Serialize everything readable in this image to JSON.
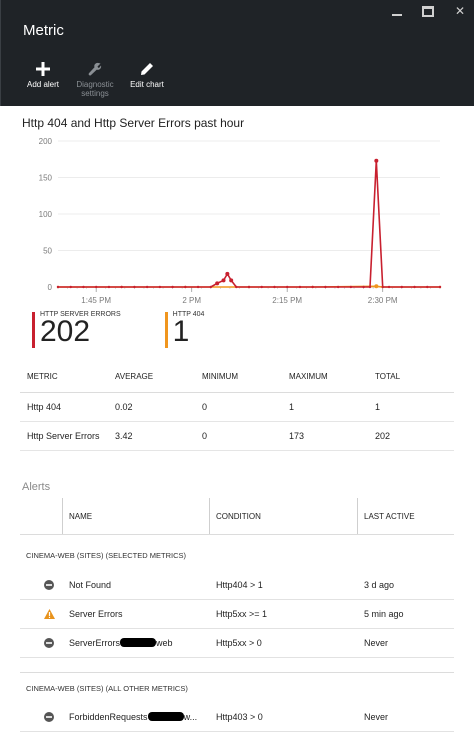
{
  "window": {
    "title": "Metric",
    "min_icon": "minimize-icon",
    "max_icon": "maximize-icon",
    "close_icon": "close-icon"
  },
  "toolbar": [
    {
      "label": "Add alert",
      "icon": "plus-icon",
      "enabled": true
    },
    {
      "label": "Diagnostic settings",
      "icon": "wrench-icon",
      "enabled": false
    },
    {
      "label": "Edit chart",
      "icon": "pencil-icon",
      "enabled": true
    }
  ],
  "chart_data": {
    "type": "line",
    "title": "Http 404 and Http Server Errors past hour",
    "ylim": [
      0,
      200
    ],
    "yticks": [
      0,
      50,
      100,
      150,
      200
    ],
    "x_tick_labels": [
      "1:45 PM",
      "2 PM",
      "2:15 PM",
      "2:30 PM"
    ],
    "x_tick_minutes": [
      6,
      21,
      36,
      51
    ],
    "xlim_minutes": [
      0,
      60
    ],
    "grid": true,
    "series": [
      {
        "name": "HTTP SERVER ERRORS",
        "color": "#c8202f",
        "points": [
          [
            0,
            0
          ],
          [
            2,
            0
          ],
          [
            4,
            0
          ],
          [
            6,
            0
          ],
          [
            8,
            0
          ],
          [
            10,
            0
          ],
          [
            12,
            0
          ],
          [
            14,
            0
          ],
          [
            16,
            0
          ],
          [
            18,
            0
          ],
          [
            20,
            0
          ],
          [
            22,
            0
          ],
          [
            24,
            0
          ],
          [
            25,
            5
          ],
          [
            26,
            9
          ],
          [
            26.6,
            18
          ],
          [
            27.2,
            9
          ],
          [
            28,
            0
          ],
          [
            30,
            0
          ],
          [
            32,
            0
          ],
          [
            34,
            0
          ],
          [
            36,
            0
          ],
          [
            38,
            0
          ],
          [
            40,
            0
          ],
          [
            42,
            0
          ],
          [
            44,
            0
          ],
          [
            46,
            0
          ],
          [
            48,
            0
          ],
          [
            49,
            0
          ],
          [
            50,
            173
          ],
          [
            51,
            0
          ],
          [
            52,
            0
          ],
          [
            54,
            0
          ],
          [
            56,
            0
          ],
          [
            58,
            0
          ],
          [
            60,
            0
          ]
        ]
      },
      {
        "name": "HTTP 404",
        "color": "#f0961e",
        "points": [
          [
            0,
            0
          ],
          [
            10,
            0
          ],
          [
            20,
            0
          ],
          [
            30,
            0
          ],
          [
            40,
            0
          ],
          [
            50,
            1
          ],
          [
            51,
            0
          ],
          [
            60,
            0
          ]
        ]
      }
    ]
  },
  "legend": [
    {
      "name": "HTTP SERVER ERRORS",
      "value": "202",
      "color": "#c8202f"
    },
    {
      "name": "HTTP 404",
      "value": "1",
      "color": "#f0961e"
    }
  ],
  "metrics_table": {
    "headers": [
      "METRIC",
      "AVERAGE",
      "MINIMUM",
      "MAXIMUM",
      "TOTAL"
    ],
    "rows": [
      [
        "Http 404",
        "0.02",
        "0",
        "1",
        "1"
      ],
      [
        "Http Server Errors",
        "3.42",
        "0",
        "173",
        "202"
      ]
    ]
  },
  "alerts": {
    "title": "Alerts",
    "headers": [
      "NAME",
      "CONDITION",
      "LAST ACTIVE"
    ],
    "groups": [
      {
        "label": "CINEMA-WEB (SITES) (SELECTED METRICS)",
        "rows": [
          {
            "icon": "disabled-icon",
            "name": "Not Found",
            "condition": "Http404 > 1",
            "last": "3 d ago"
          },
          {
            "icon": "warning-icon",
            "name": "Server Errors",
            "condition": "Http5xx >= 1",
            "last": "5 min ago"
          },
          {
            "icon": "disabled-icon",
            "name": "ServerErrors",
            "name_suffix": "web",
            "condition": "Http5xx > 0",
            "last": "Never"
          }
        ]
      },
      {
        "label": "CINEMA-WEB (SITES) (ALL OTHER METRICS)",
        "rows": [
          {
            "icon": "disabled-icon",
            "name": "ForbiddenRequests",
            "name_suffix": "w...",
            "condition": "Http403 > 0",
            "last": "Never"
          }
        ]
      }
    ]
  }
}
